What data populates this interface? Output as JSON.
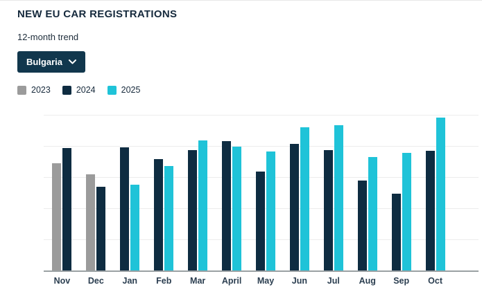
{
  "page": {
    "title": "NEW EU CAR REGISTRATIONS",
    "subtitle": "12-month trend"
  },
  "country_selector": {
    "value": "Bulgaria",
    "icon": "chevron-down-icon"
  },
  "legend": [
    {
      "label": "2023",
      "color": "#9b9b9b"
    },
    {
      "label": "2024",
      "color": "#0e2c41"
    },
    {
      "label": "2025",
      "color": "#1fc3d8"
    }
  ],
  "chart_data": {
    "type": "bar",
    "title": "NEW EU CAR REGISTRATIONS",
    "subtitle": "12-month trend",
    "country": "Bulgaria",
    "categories": [
      "Nov",
      "Dec",
      "Jan",
      "Feb",
      "Mar",
      "April",
      "May",
      "Jun",
      "Jul",
      "Aug",
      "Sep",
      "Oct"
    ],
    "series": [
      {
        "name": "2023",
        "color": "#9b9b9b",
        "values": [
          3470,
          3110,
          null,
          null,
          null,
          null,
          null,
          null,
          null,
          null,
          null,
          null
        ]
      },
      {
        "name": "2024",
        "color": "#0e2c41",
        "values": [
          3950,
          2720,
          3970,
          3600,
          3890,
          4180,
          3190,
          4100,
          3900,
          2910,
          2490,
          3860
        ]
      },
      {
        "name": "2025",
        "color": "#1fc3d8",
        "values": [
          null,
          null,
          2770,
          3380,
          4210,
          4000,
          3840,
          4620,
          4700,
          3660,
          3810,
          4930
        ]
      }
    ],
    "xlabel": "",
    "ylabel": "",
    "ylim": [
      0,
      5000
    ],
    "ytick_interval": 1000,
    "ytick_labels": [
      "0",
      "1,000",
      "2,000",
      "3,000",
      "4,000",
      "5,000"
    ],
    "grid": true,
    "legend_position": "top-left"
  }
}
